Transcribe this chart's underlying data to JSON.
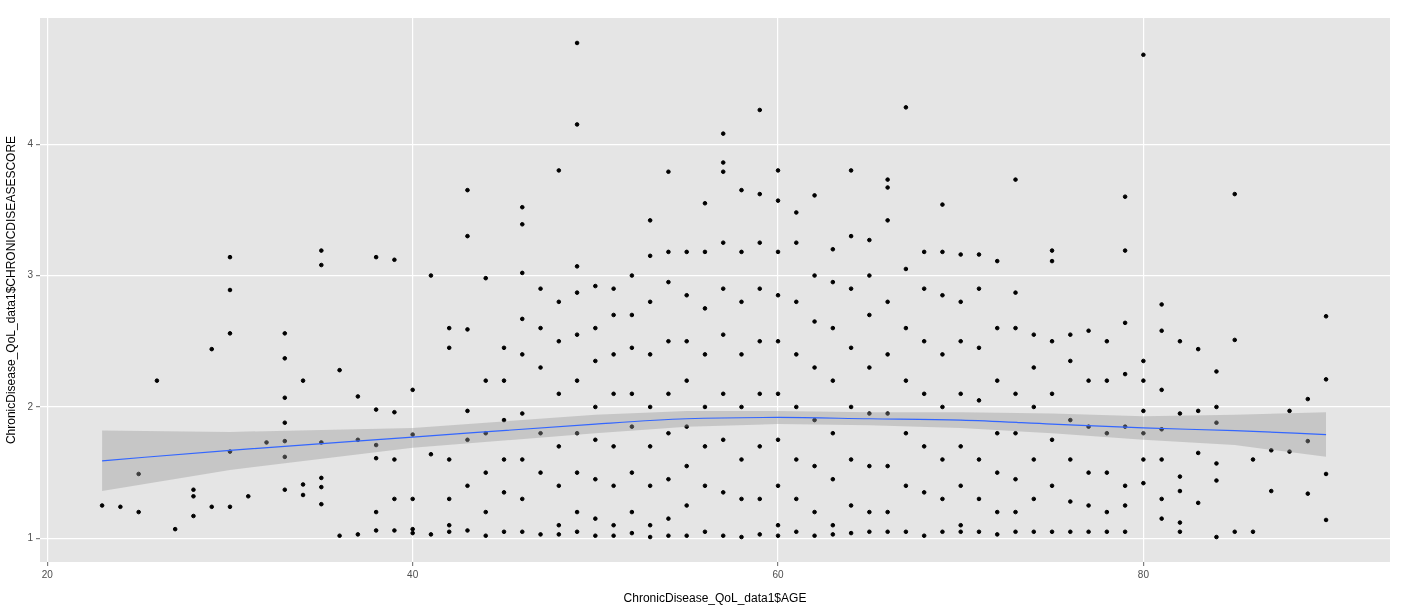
{
  "chart_data": {
    "type": "scatter",
    "xlabel": "ChronicDisease_QoL_data1$AGE",
    "ylabel": "ChronicDisease_QoL_data1$CHRONICDISEASESCORE",
    "xlim": [
      19.6,
      93.5
    ],
    "ylim": [
      0.82,
      4.96
    ],
    "xticks": [
      20,
      40,
      60,
      80
    ],
    "yticks": [
      1,
      2,
      3,
      4
    ],
    "grid": true,
    "series": [
      {
        "color": "#000000",
        "marker": "circle",
        "x": [
          23,
          24,
          25,
          25,
          26,
          27,
          28,
          28,
          28,
          29,
          29,
          30,
          30,
          30,
          30,
          30,
          31,
          32,
          33,
          33,
          33,
          33,
          33,
          33,
          33,
          34,
          34,
          34,
          35,
          35,
          35,
          35,
          35,
          35,
          36,
          36,
          37,
          37,
          37,
          38,
          38,
          38,
          38,
          38,
          38,
          39,
          39,
          39,
          39,
          39,
          40,
          40,
          40,
          40,
          40,
          41,
          41,
          41,
          42,
          42,
          42,
          42,
          42,
          42,
          43,
          43,
          43,
          43,
          43,
          43,
          43,
          44,
          44,
          44,
          44,
          44,
          44,
          45,
          45,
          45,
          45,
          45,
          45,
          46,
          46,
          46,
          46,
          46,
          46,
          46,
          46,
          46,
          47,
          47,
          47,
          47,
          47,
          47,
          48,
          48,
          48,
          48,
          48,
          48,
          48,
          48,
          49,
          49,
          49,
          49,
          49,
          49,
          49,
          49,
          49,
          49,
          50,
          50,
          50,
          50,
          50,
          50,
          50,
          50,
          51,
          51,
          51,
          51,
          51,
          51,
          51,
          51,
          52,
          52,
          52,
          52,
          52,
          52,
          52,
          52,
          53,
          53,
          53,
          53,
          53,
          53,
          53,
          53,
          53,
          54,
          54,
          54,
          54,
          54,
          54,
          54,
          54,
          54,
          55,
          55,
          55,
          55,
          55,
          55,
          55,
          55,
          56,
          56,
          56,
          56,
          56,
          56,
          56,
          56,
          57,
          57,
          57,
          57,
          57,
          57,
          57,
          57,
          57,
          57,
          58,
          58,
          58,
          58,
          58,
          58,
          58,
          58,
          59,
          59,
          59,
          59,
          59,
          59,
          59,
          59,
          59,
          60,
          60,
          60,
          60,
          60,
          60,
          60,
          60,
          60,
          60,
          61,
          61,
          61,
          61,
          61,
          61,
          61,
          61,
          62,
          62,
          62,
          62,
          62,
          62,
          62,
          62,
          63,
          63,
          63,
          63,
          63,
          63,
          63,
          63,
          64,
          64,
          64,
          64,
          64,
          64,
          64,
          64,
          65,
          65,
          65,
          65,
          65,
          65,
          65,
          65,
          66,
          66,
          66,
          66,
          66,
          66,
          66,
          66,
          66,
          67,
          67,
          67,
          67,
          67,
          67,
          67,
          68,
          68,
          68,
          68,
          68,
          68,
          68,
          69,
          69,
          69,
          69,
          69,
          69,
          69,
          69,
          70,
          70,
          70,
          70,
          70,
          70,
          70,
          70,
          71,
          71,
          71,
          71,
          71,
          71,
          71,
          72,
          72,
          72,
          72,
          72,
          72,
          72,
          73,
          73,
          73,
          73,
          73,
          73,
          73,
          73,
          74,
          74,
          74,
          74,
          74,
          74,
          75,
          75,
          75,
          75,
          75,
          75,
          75,
          76,
          76,
          76,
          76,
          76,
          76,
          77,
          77,
          77,
          77,
          77,
          77,
          78,
          78,
          78,
          78,
          78,
          78,
          79,
          79,
          79,
          79,
          79,
          79,
          79,
          79,
          80,
          80,
          80,
          80,
          80,
          80,
          80,
          81,
          81,
          81,
          81,
          81,
          81,
          81,
          82,
          82,
          82,
          82,
          82,
          82,
          83,
          83,
          83,
          83,
          84,
          84,
          84,
          84,
          84,
          84,
          85,
          85,
          85,
          86,
          86,
          87,
          87,
          88,
          88,
          89,
          89,
          89,
          90,
          90,
          90,
          90
        ],
        "values": [
          1.25,
          1.24,
          1.49,
          1.2,
          2.2,
          1.07,
          1.37,
          1.32,
          1.17,
          2.44,
          1.24,
          3.14,
          2.89,
          2.56,
          1.66,
          1.24,
          1.32,
          1.73,
          2.56,
          2.37,
          2.07,
          1.88,
          1.74,
          1.62,
          1.37,
          2.2,
          1.41,
          1.33,
          3.19,
          3.08,
          1.73,
          1.46,
          1.39,
          1.26,
          2.28,
          1.02,
          2.08,
          1.75,
          1.03,
          3.14,
          1.98,
          1.71,
          1.61,
          1.2,
          1.06,
          3.12,
          1.96,
          1.6,
          1.3,
          1.06,
          2.13,
          1.79,
          1.3,
          1.07,
          1.04,
          3.0,
          1.64,
          1.03,
          2.6,
          2.45,
          1.6,
          1.3,
          1.1,
          1.05,
          3.65,
          3.3,
          2.59,
          1.97,
          1.75,
          1.4,
          1.06,
          2.98,
          2.2,
          1.8,
          1.5,
          1.2,
          1.02,
          2.45,
          2.2,
          1.9,
          1.6,
          1.35,
          1.05,
          3.52,
          3.39,
          3.02,
          2.67,
          2.4,
          1.95,
          1.6,
          1.3,
          1.05,
          2.9,
          2.6,
          2.3,
          1.8,
          1.5,
          1.03,
          3.8,
          2.8,
          2.5,
          2.1,
          1.7,
          1.4,
          1.1,
          1.03,
          4.77,
          4.15,
          3.07,
          2.87,
          2.55,
          2.2,
          1.8,
          1.5,
          1.2,
          1.05,
          2.92,
          2.6,
          2.35,
          2.0,
          1.75,
          1.45,
          1.15,
          1.02,
          2.9,
          2.7,
          2.4,
          2.1,
          1.7,
          1.4,
          1.1,
          1.02,
          3.0,
          2.7,
          2.45,
          2.1,
          1.85,
          1.5,
          1.2,
          1.04,
          3.42,
          3.15,
          2.8,
          2.4,
          2.0,
          1.7,
          1.4,
          1.1,
          1.01,
          3.79,
          3.18,
          2.95,
          2.5,
          2.1,
          1.8,
          1.45,
          1.15,
          1.02,
          3.18,
          2.85,
          2.5,
          2.2,
          1.85,
          1.55,
          1.25,
          1.02,
          3.55,
          3.18,
          2.75,
          2.4,
          2.0,
          1.7,
          1.4,
          1.05,
          4.08,
          3.86,
          3.79,
          3.25,
          2.9,
          2.55,
          2.1,
          1.75,
          1.35,
          1.02,
          3.65,
          3.18,
          2.8,
          2.4,
          2.0,
          1.6,
          1.3,
          1.01,
          4.26,
          3.62,
          3.25,
          2.9,
          2.5,
          2.1,
          1.7,
          1.3,
          1.03,
          3.8,
          3.57,
          3.18,
          2.85,
          2.5,
          2.1,
          1.75,
          1.4,
          1.1,
          1.02,
          3.48,
          3.25,
          2.8,
          2.4,
          2.0,
          1.6,
          1.3,
          1.05,
          3.61,
          3.0,
          2.65,
          2.3,
          1.9,
          1.55,
          1.2,
          1.02,
          3.2,
          2.95,
          2.6,
          2.2,
          1.8,
          1.45,
          1.1,
          1.03,
          3.8,
          3.3,
          2.9,
          2.45,
          2.0,
          1.6,
          1.25,
          1.04,
          3.27,
          3.0,
          2.7,
          2.3,
          1.95,
          1.55,
          1.2,
          1.05,
          3.73,
          3.67,
          3.42,
          2.8,
          2.4,
          1.95,
          1.55,
          1.2,
          1.05,
          4.28,
          3.05,
          2.6,
          2.2,
          1.8,
          1.4,
          1.05,
          3.18,
          2.9,
          2.5,
          2.1,
          1.7,
          1.35,
          1.02,
          3.54,
          3.18,
          2.85,
          2.4,
          2.0,
          1.6,
          1.3,
          1.05,
          3.16,
          2.8,
          2.5,
          2.1,
          1.7,
          1.4,
          1.1,
          1.05,
          3.16,
          2.9,
          2.45,
          2.05,
          1.6,
          1.3,
          1.05,
          3.11,
          2.6,
          2.2,
          1.8,
          1.5,
          1.2,
          1.03,
          3.73,
          2.87,
          2.6,
          2.1,
          1.8,
          1.45,
          1.2,
          1.05,
          2.55,
          2.3,
          2.0,
          1.6,
          1.3,
          1.05,
          3.19,
          3.11,
          2.5,
          2.1,
          1.75,
          1.4,
          1.05,
          2.55,
          2.35,
          1.9,
          1.6,
          1.28,
          1.05,
          2.58,
          2.2,
          1.85,
          1.5,
          1.25,
          1.05,
          2.5,
          2.2,
          1.8,
          1.5,
          1.2,
          1.05,
          3.6,
          3.19,
          2.64,
          2.25,
          1.85,
          1.4,
          1.25,
          1.05,
          4.68,
          2.35,
          2.2,
          1.97,
          1.8,
          1.6,
          1.42,
          2.78,
          2.58,
          2.13,
          1.83,
          1.6,
          1.3,
          1.15,
          2.5,
          1.95,
          1.47,
          1.36,
          1.12,
          1.05,
          2.44,
          1.97,
          1.65,
          1.27,
          2.27,
          2.0,
          1.88,
          1.57,
          1.44,
          1.01,
          3.62,
          2.51,
          1.05,
          1.05,
          1.6,
          1.67,
          1.36,
          1.97,
          1.66,
          2.06,
          1.74,
          1.34,
          2.69,
          2.21,
          1.49,
          1.14
        ]
      },
      {
        "type": "line",
        "color": "#3366ff",
        "marker": "none",
        "line_style": "solid",
        "x": [
          23,
          30,
          40,
          50,
          55,
          60,
          65,
          70,
          75,
          80,
          85,
          90
        ],
        "values": [
          1.59,
          1.67,
          1.77,
          1.87,
          1.91,
          1.92,
          1.91,
          1.9,
          1.87,
          1.84,
          1.82,
          1.79
        ],
        "lower": [
          1.36,
          1.52,
          1.69,
          1.8,
          1.85,
          1.87,
          1.86,
          1.84,
          1.8,
          1.75,
          1.71,
          1.62
        ],
        "upper": [
          1.82,
          1.81,
          1.84,
          1.94,
          1.97,
          1.97,
          1.96,
          1.96,
          1.95,
          1.93,
          1.94,
          1.96
        ]
      }
    ]
  }
}
